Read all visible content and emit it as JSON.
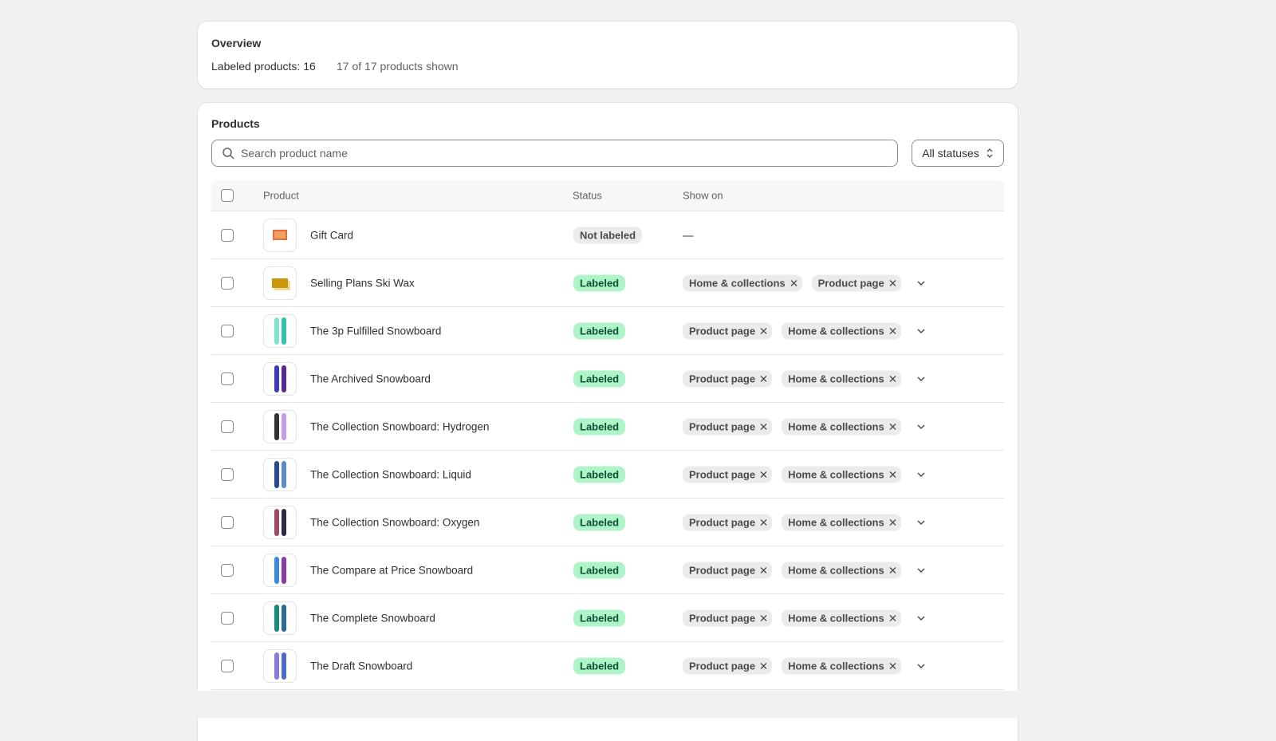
{
  "overview": {
    "title": "Overview",
    "labeled": "Labeled products: 16",
    "shown": "17 of 17 products shown"
  },
  "products": {
    "title": "Products",
    "search_placeholder": "Search product name",
    "filter": "All statuses",
    "columns": [
      "Product",
      "Status",
      "Show on"
    ],
    "rows": [
      {
        "name": "Gift Card",
        "status": "Not labeled",
        "placeholder": "—"
      },
      {
        "name": "Selling Plans Ski Wax",
        "status": "Labeled",
        "show_on": [
          "Home & collections",
          "Product page"
        ]
      },
      {
        "name": "The 3p Fulfilled Snowboard",
        "status": "Labeled",
        "show_on": [
          "Product page",
          "Home & collections"
        ]
      },
      {
        "name": "The Archived Snowboard",
        "status": "Labeled",
        "show_on": [
          "Product page",
          "Home & collections"
        ]
      },
      {
        "name": "The Collection Snowboard: Hydrogen",
        "status": "Labeled",
        "show_on": [
          "Product page",
          "Home & collections"
        ]
      },
      {
        "name": "The Collection Snowboard: Liquid",
        "status": "Labeled",
        "show_on": [
          "Product page",
          "Home & collections"
        ]
      },
      {
        "name": "The Collection Snowboard: Oxygen",
        "status": "Labeled",
        "show_on": [
          "Product page",
          "Home & collections"
        ]
      },
      {
        "name": "The Compare at Price Snowboard",
        "status": "Labeled",
        "show_on": [
          "Product page",
          "Home & collections"
        ]
      },
      {
        "name": "The Complete Snowboard",
        "status": "Labeled",
        "show_on": [
          "Product page",
          "Home & collections"
        ]
      },
      {
        "name": "The Draft Snowboard",
        "status": "Labeled",
        "show_on": [
          "Product page",
          "Home & collections"
        ]
      }
    ]
  }
}
